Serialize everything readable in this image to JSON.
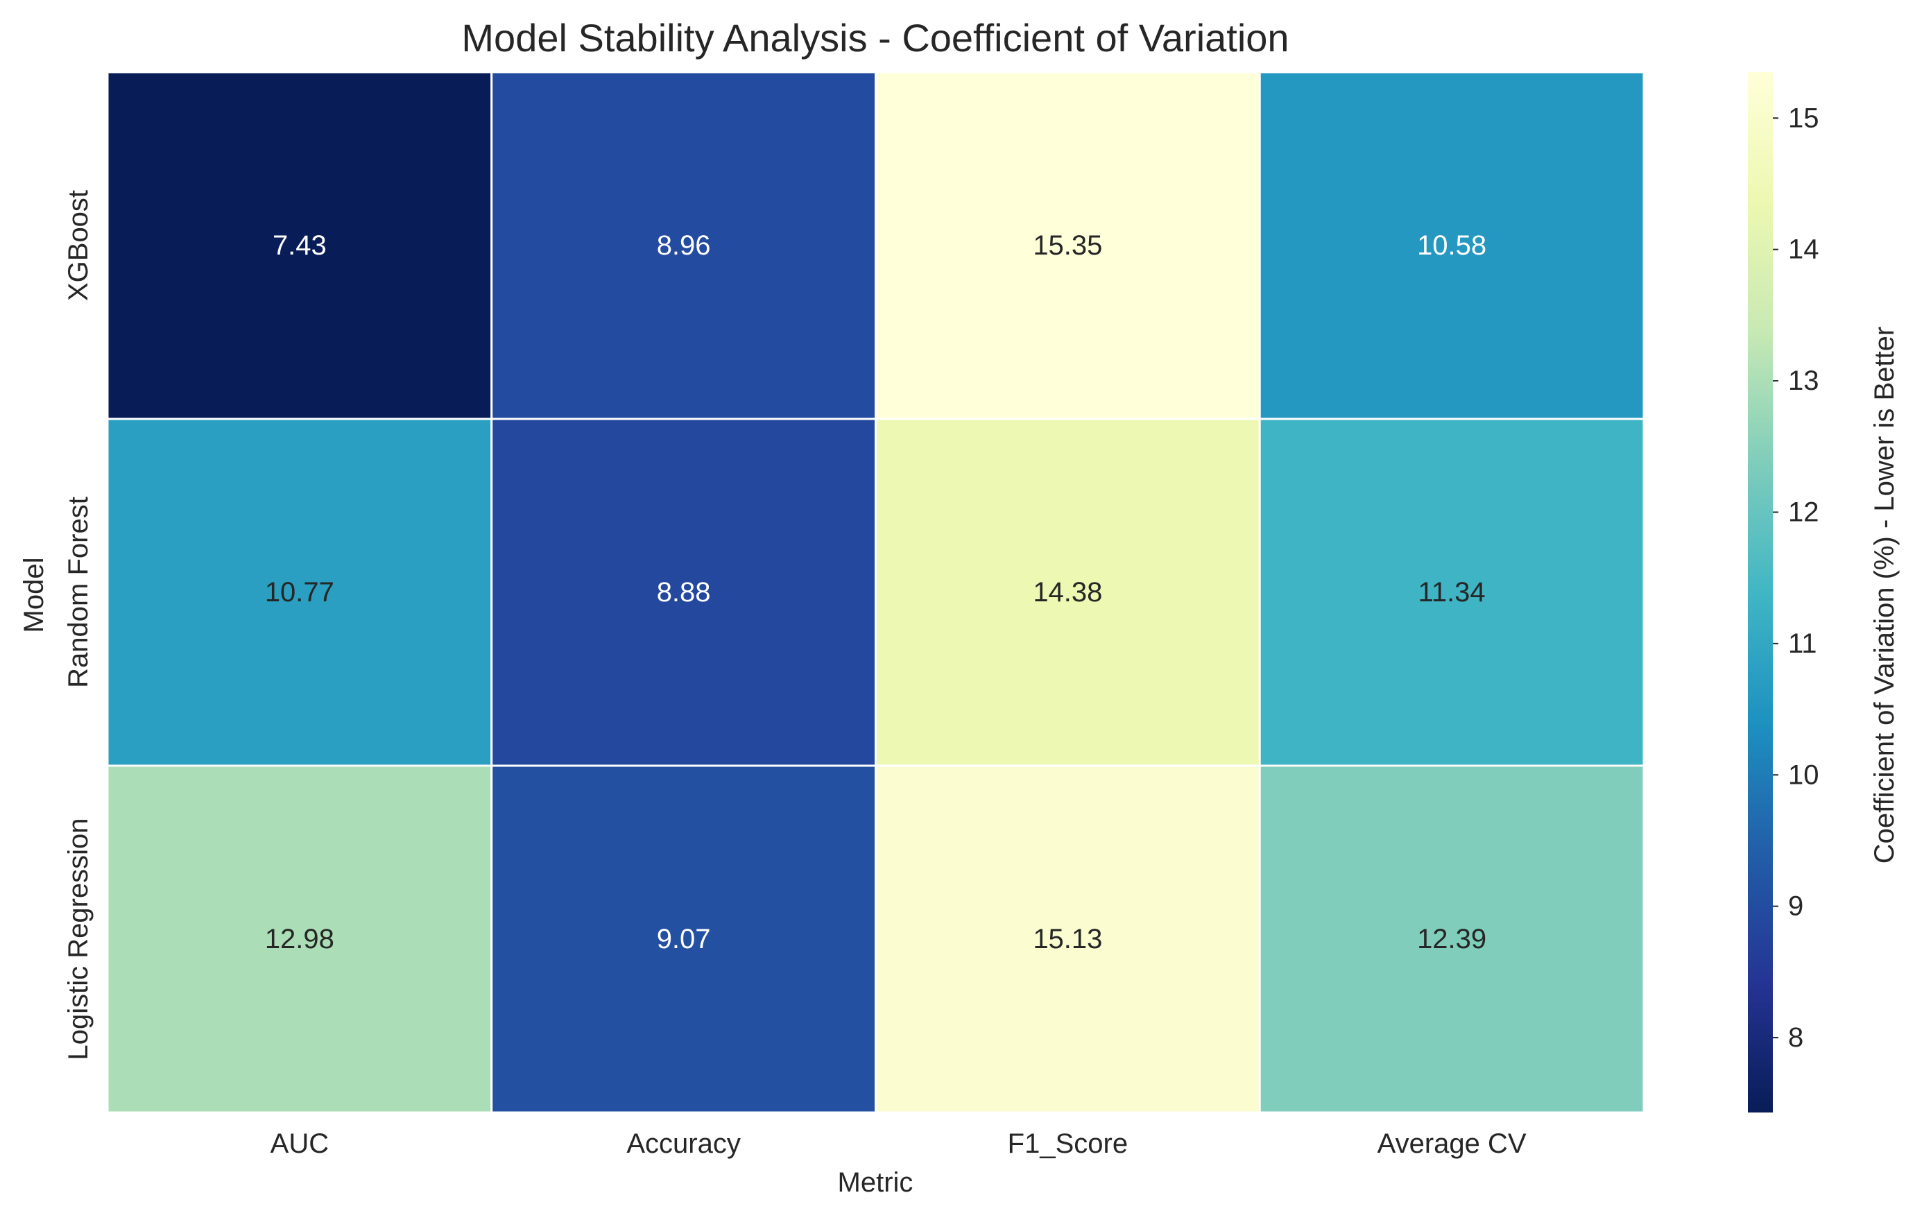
{
  "chart_data": {
    "type": "heatmap",
    "title": "Model Stability Analysis - Coefficient of Variation",
    "xlabel": "Metric",
    "ylabel": "Model",
    "x_categories": [
      "AUC",
      "Accuracy",
      "F1_Score",
      "Average CV"
    ],
    "y_categories": [
      "XGBoost",
      "Random Forest",
      "Logistic Regression"
    ],
    "values": [
      [
        7.43,
        8.96,
        15.35,
        10.58
      ],
      [
        10.77,
        8.88,
        14.38,
        11.34
      ],
      [
        12.98,
        9.07,
        15.13,
        12.39
      ]
    ],
    "value_labels": [
      [
        "7.43",
        "8.96",
        "15.35",
        "10.58"
      ],
      [
        "10.77",
        "8.88",
        "14.38",
        "11.34"
      ],
      [
        "12.98",
        "9.07",
        "15.13",
        "12.39"
      ]
    ],
    "colormap": "YlGnBu_r",
    "color_range": [
      7.43,
      15.35
    ],
    "colorbar": {
      "label": "Coefficient of Variation (%) - Lower is Better",
      "ticks": [
        8,
        9,
        10,
        11,
        12,
        13,
        14,
        15
      ],
      "tick_labels": [
        "8",
        "9",
        "10",
        "11",
        "12",
        "13",
        "14",
        "15"
      ],
      "placement": "right"
    },
    "grid": false
  }
}
